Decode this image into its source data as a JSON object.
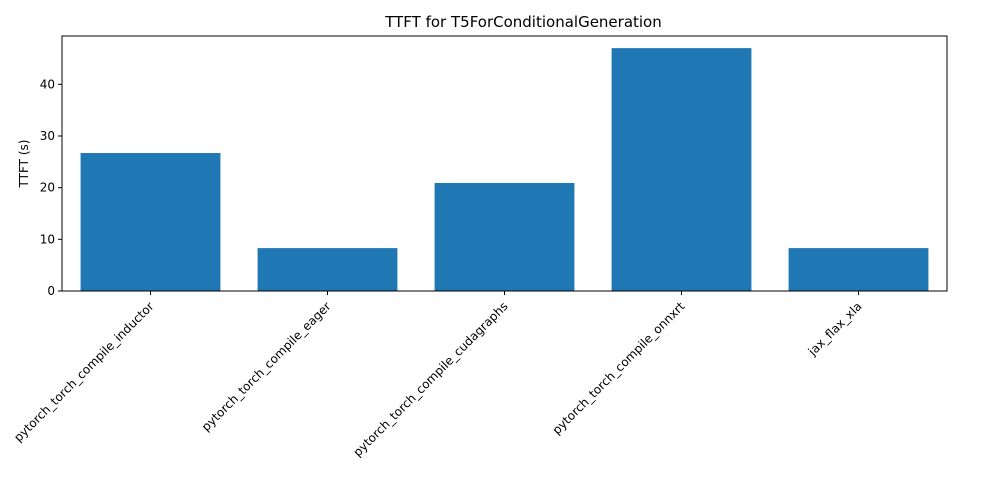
{
  "chart_data": {
    "type": "bar",
    "title": "TTFT for T5ForConditionalGeneration",
    "xlabel": "",
    "ylabel": "TTFT (s)",
    "categories": [
      "pytorch_torch_compile_inductor",
      "pytorch_torch_compile_eager",
      "pytorch_torch_compile_cudagraphs",
      "pytorch_torch_compile_onnxrt",
      "jax_flax_xla"
    ],
    "values": [
      26.7,
      8.3,
      20.9,
      47.0,
      8.3
    ],
    "ylim": [
      0,
      49.35
    ],
    "yticks": [
      0,
      10,
      20,
      30,
      40
    ],
    "bar_color": "#1f77b4",
    "x_tick_rotation_deg": 45,
    "grid": false,
    "legend": "none"
  }
}
